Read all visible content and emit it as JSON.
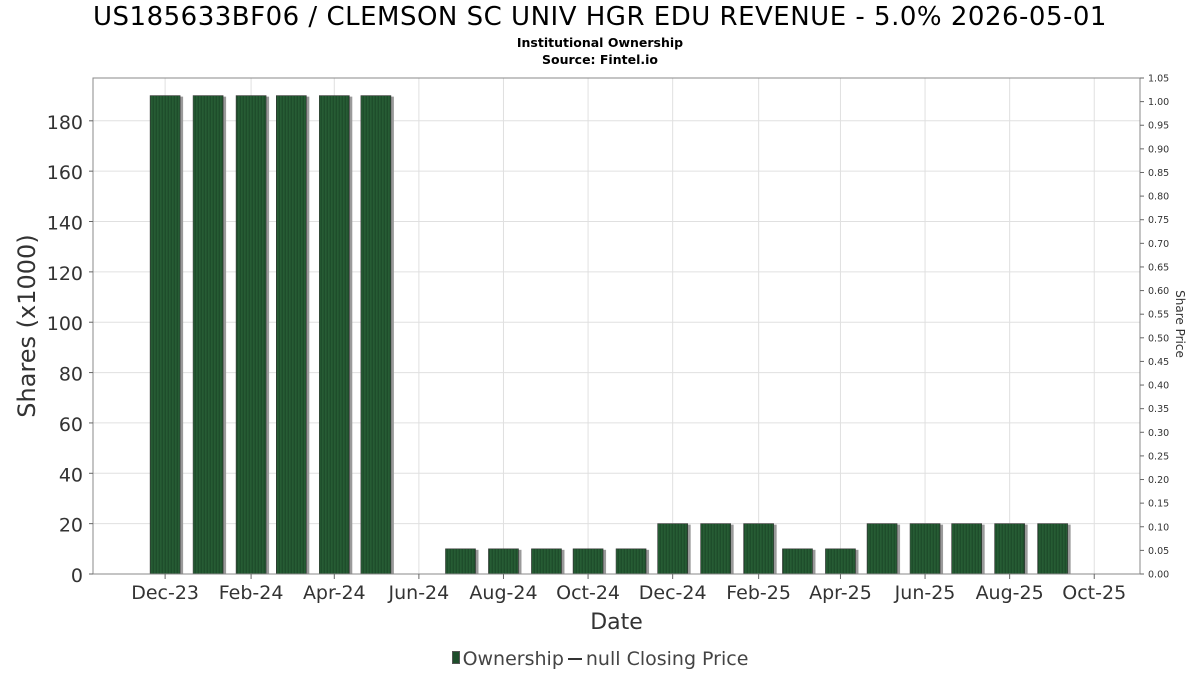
{
  "header": {
    "title": "US185633BF06 / CLEMSON SC UNIV HGR EDU REVENUE - 5.0% 2026-05-01",
    "subtitle1": "Institutional Ownership",
    "subtitle2": "Source: Fintel.io"
  },
  "legend": {
    "ownership": "Ownership",
    "closing_price": "null Closing Price"
  },
  "colors": {
    "bar": "#1e4d2b",
    "bar_stripe": "#2e6b3d",
    "bar_shadow": "#9a9a9a",
    "grid": "#e0e0e0"
  },
  "chart_data": {
    "type": "bar",
    "title": "US185633BF06 / CLEMSON SC UNIV HGR EDU REVENUE - 5.0% 2026-05-01",
    "xlabel": "Date",
    "ylabel": "Shares (x1000)",
    "y2label": "Share Price",
    "ylim": [
      0,
      197
    ],
    "y2lim": [
      0,
      1.05
    ],
    "yticks": [
      0,
      20,
      40,
      60,
      80,
      100,
      120,
      140,
      160,
      180
    ],
    "y2ticks": [
      "0.00",
      "0.05",
      "0.10",
      "0.15",
      "0.20",
      "0.25",
      "0.30",
      "0.35",
      "0.40",
      "0.45",
      "0.50",
      "0.55",
      "0.60",
      "0.65",
      "0.70",
      "0.75",
      "0.80",
      "0.85",
      "0.90",
      "0.95",
      "1.00",
      "1.05"
    ],
    "xticks": [
      "Dec-23",
      "Feb-24",
      "Apr-24",
      "Jun-24",
      "Aug-24",
      "Oct-24",
      "Dec-24",
      "Feb-25",
      "Apr-25",
      "Jun-25",
      "Aug-25",
      "Oct-25"
    ],
    "grid": true,
    "legend_position": "bottom",
    "series": [
      {
        "name": "Ownership",
        "points": [
          {
            "date": "2023-12-01",
            "value": 190
          },
          {
            "date": "2024-01-01",
            "value": 190
          },
          {
            "date": "2024-02-01",
            "value": 190
          },
          {
            "date": "2024-03-01",
            "value": 190
          },
          {
            "date": "2024-04-01",
            "value": 190
          },
          {
            "date": "2024-05-01",
            "value": 190
          },
          {
            "date": "2024-07-01",
            "value": 10
          },
          {
            "date": "2024-08-01",
            "value": 10
          },
          {
            "date": "2024-09-01",
            "value": 10
          },
          {
            "date": "2024-10-01",
            "value": 10
          },
          {
            "date": "2024-11-01",
            "value": 10
          },
          {
            "date": "2024-12-01",
            "value": 20
          },
          {
            "date": "2025-01-01",
            "value": 20
          },
          {
            "date": "2025-02-01",
            "value": 20
          },
          {
            "date": "2025-03-01",
            "value": 10
          },
          {
            "date": "2025-04-01",
            "value": 10
          },
          {
            "date": "2025-05-01",
            "value": 20
          },
          {
            "date": "2025-06-01",
            "value": 20
          },
          {
            "date": "2025-07-01",
            "value": 20
          },
          {
            "date": "2025-08-01",
            "value": 20
          },
          {
            "date": "2025-09-01",
            "value": 20
          }
        ]
      },
      {
        "name": "null Closing Price",
        "points": []
      }
    ]
  }
}
